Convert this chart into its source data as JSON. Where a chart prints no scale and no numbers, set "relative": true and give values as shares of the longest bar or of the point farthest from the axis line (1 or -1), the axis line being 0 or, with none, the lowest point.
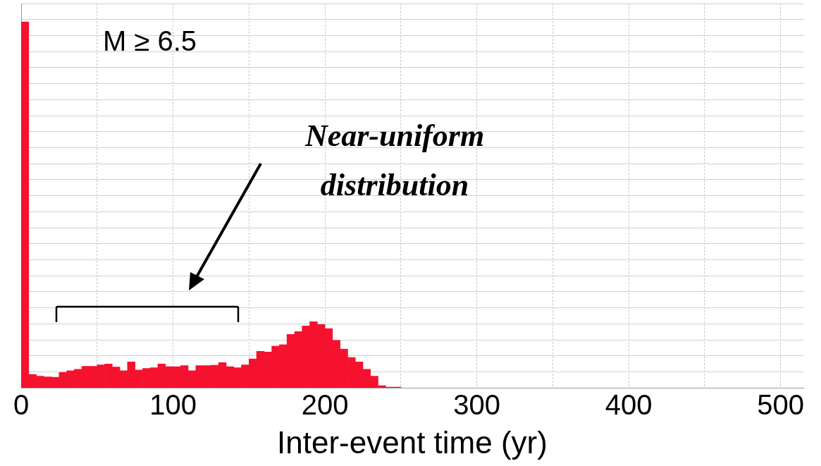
{
  "chart_data": {
    "type": "bar",
    "relative": true,
    "xlabel": "Inter-event time (yr)",
    "color": "#f5122f",
    "x": [
      2.5,
      7.5,
      12.5,
      17.5,
      22.5,
      27.5,
      32.5,
      37.5,
      42.5,
      47.5,
      52.5,
      57.5,
      62.5,
      67.5,
      72.5,
      77.5,
      82.5,
      87.5,
      92.5,
      97.5,
      102.5,
      107.5,
      112.5,
      117.5,
      122.5,
      127.5,
      132.5,
      137.5,
      142.5,
      147.5,
      152.5,
      157.5,
      162.5,
      167.5,
      172.5,
      177.5,
      182.5,
      187.5,
      192.5,
      197.5,
      202.5,
      207.5,
      212.5,
      217.5,
      222.5,
      227.5,
      232.5,
      237.5,
      242.5,
      247.5
    ],
    "values": [
      1,
      0.037,
      0.032,
      0.03,
      0.029,
      0.042,
      0.047,
      0.051,
      0.059,
      0.059,
      0.063,
      0.065,
      0.057,
      0.047,
      0.071,
      0.049,
      0.053,
      0.055,
      0.065,
      0.058,
      0.058,
      0.061,
      0.047,
      0.061,
      0.061,
      0.062,
      0.069,
      0.058,
      0.055,
      0.063,
      0.079,
      0.1,
      0.098,
      0.114,
      0.118,
      0.146,
      0.154,
      0.169,
      0.181,
      0.173,
      0.162,
      0.13,
      0.106,
      0.083,
      0.071,
      0.051,
      0.032,
      0.006,
      0.002,
      0.002
    ],
    "xlim": [
      0,
      515
    ],
    "xticks": [
      0,
      {
        "value": 50,
        "label": null
      },
      100,
      {
        "value": 150,
        "label": null
      },
      200,
      {
        "value": 250,
        "label": null
      },
      300,
      {
        "value": 350,
        "label": null
      },
      400,
      {
        "value": 450,
        "label": null
      },
      500
    ],
    "grid": true,
    "legend": false,
    "annotations": [
      "M ≥ 6.5",
      "Near-uniform distribution"
    ]
  }
}
